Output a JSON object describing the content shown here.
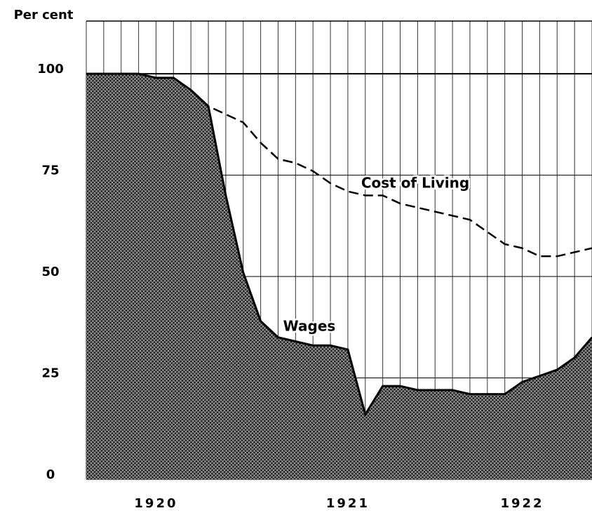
{
  "chart_data": {
    "type": "line",
    "y_axis_label": "Per cent",
    "categories": [
      null,
      null,
      null,
      null,
      "1920",
      null,
      null,
      null,
      null,
      null,
      null,
      null,
      null,
      null,
      null,
      "1921",
      null,
      null,
      null,
      null,
      null,
      null,
      null,
      null,
      null,
      "1922",
      null,
      null,
      null,
      null
    ],
    "series": [
      {
        "name": "Wages",
        "color": "#000000",
        "fill": true,
        "values": [
          100,
          100,
          100,
          100,
          99,
          99,
          96,
          92,
          70,
          51,
          39,
          35,
          34,
          33,
          33,
          32,
          16,
          23,
          23,
          22,
          22,
          22,
          21,
          21,
          21,
          24,
          25.5,
          27,
          30,
          35
        ]
      },
      {
        "name": "Cost of Living",
        "color": "#000000",
        "dashed": true,
        "values": [
          null,
          null,
          null,
          null,
          null,
          null,
          96,
          92,
          90,
          88,
          83,
          79,
          78,
          76,
          73,
          71,
          70,
          70,
          68,
          67,
          66,
          65,
          64,
          61,
          58,
          57,
          55,
          55,
          56,
          57
        ]
      }
    ],
    "ylim": [
      0,
      113
    ],
    "yticks": [
      0,
      25,
      50,
      75,
      100
    ],
    "grid": true
  }
}
